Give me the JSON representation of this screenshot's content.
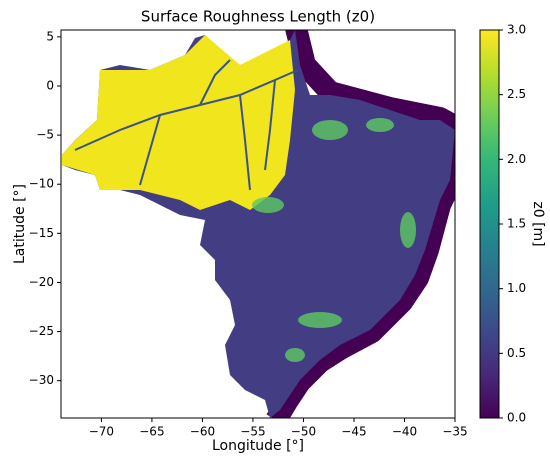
{
  "chart_data": {
    "type": "heatmap",
    "title": "Surface Roughness Length (z0)",
    "xlabel": "Longitude [°]",
    "ylabel": "Latitude [°]",
    "colorbar_label": "z0 [m]",
    "colormap": "viridis",
    "xlim": [
      -74,
      -35
    ],
    "ylim": [
      -33.8,
      5.7
    ],
    "xticks": [
      {
        "value": -70,
        "label": "−70"
      },
      {
        "value": -65,
        "label": "−65"
      },
      {
        "value": -60,
        "label": "−60"
      },
      {
        "value": -55,
        "label": "−55"
      },
      {
        "value": -50,
        "label": "−50"
      },
      {
        "value": -45,
        "label": "−45"
      },
      {
        "value": -40,
        "label": "−40"
      },
      {
        "value": -35,
        "label": "−35"
      }
    ],
    "yticks": [
      5,
      0,
      {
        "value": -5,
        "label": "−5"
      },
      {
        "value": -10,
        "label": "−10"
      },
      {
        "value": -15,
        "label": "−15"
      },
      {
        "value": -20,
        "label": "−20"
      },
      {
        "value": -25,
        "label": "−25"
      },
      {
        "value": -30,
        "label": "−30"
      }
    ],
    "clim": [
      0,
      3
    ],
    "cticks": [
      {
        "value": 0,
        "label": "0.0"
      },
      {
        "value": 0.5,
        "label": "0.5"
      },
      {
        "value": 1,
        "label": "1.0"
      },
      {
        "value": 1.5,
        "label": "1.5"
      },
      {
        "value": 2,
        "label": "2.0"
      },
      {
        "value": 2.5,
        "label": "2.5"
      },
      {
        "value": 3,
        "label": "3.0"
      }
    ]
  }
}
